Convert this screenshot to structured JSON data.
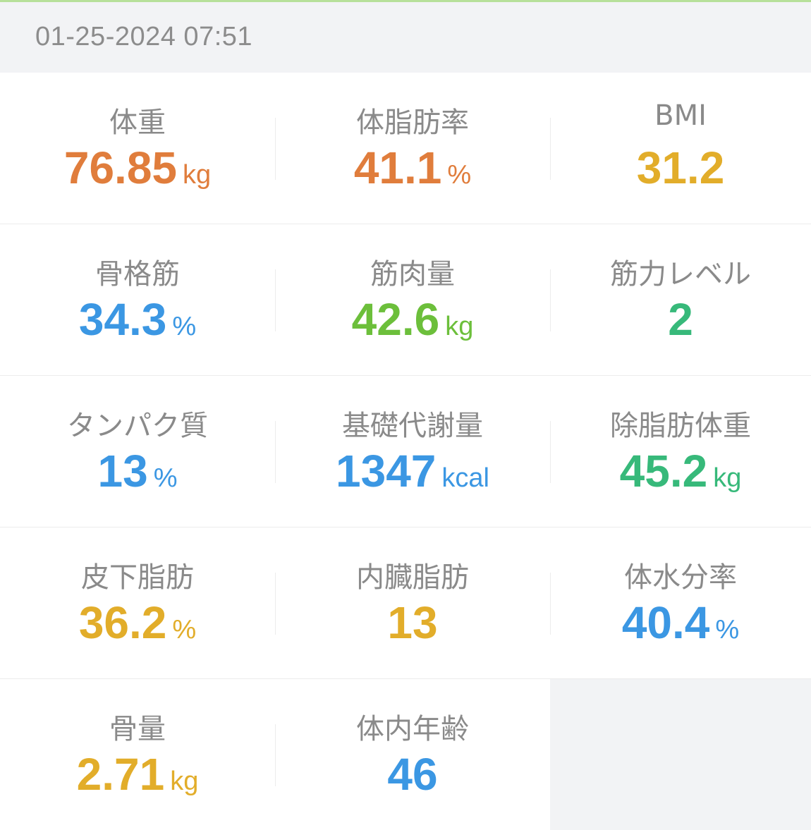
{
  "header": {
    "timestamp": "01-25-2024 07:51"
  },
  "colors": {
    "orange": "#e07d3c",
    "yellow": "#e2ad2a",
    "blue": "#3b97e3",
    "green": "#6cbf3b",
    "teal": "#37b97a",
    "accent": "#b7e09a"
  },
  "metrics": [
    {
      "label": "体重",
      "value": "76.85",
      "unit": "kg",
      "color": "#e07d3c"
    },
    {
      "label": "体脂肪率",
      "value": "41.1",
      "unit": "%",
      "color": "#e07d3c"
    },
    {
      "label": "BMI",
      "value": "31.2",
      "unit": "",
      "color": "#e2ad2a"
    },
    {
      "label": "骨格筋",
      "value": "34.3",
      "unit": "%",
      "color": "#3b97e3"
    },
    {
      "label": "筋肉量",
      "value": "42.6",
      "unit": "kg",
      "color": "#6cbf3b"
    },
    {
      "label": "筋力レベル",
      "value": "2",
      "unit": "",
      "color": "#37b97a"
    },
    {
      "label": "タンパク質",
      "value": "13",
      "unit": "%",
      "color": "#3b97e3"
    },
    {
      "label": "基礎代謝量",
      "value": "1347",
      "unit": "kcal",
      "color": "#3b97e3"
    },
    {
      "label": "除脂肪体重",
      "value": "45.2",
      "unit": "kg",
      "color": "#37b97a"
    },
    {
      "label": "皮下脂肪",
      "value": "36.2",
      "unit": "%",
      "color": "#e2ad2a"
    },
    {
      "label": "内臓脂肪",
      "value": "13",
      "unit": "",
      "color": "#e2ad2a"
    },
    {
      "label": "体水分率",
      "value": "40.4",
      "unit": "%",
      "color": "#3b97e3"
    },
    {
      "label": "骨量",
      "value": "2.71",
      "unit": "kg",
      "color": "#e2ad2a"
    },
    {
      "label": "体内年齢",
      "value": "46",
      "unit": "",
      "color": "#3b97e3"
    }
  ]
}
